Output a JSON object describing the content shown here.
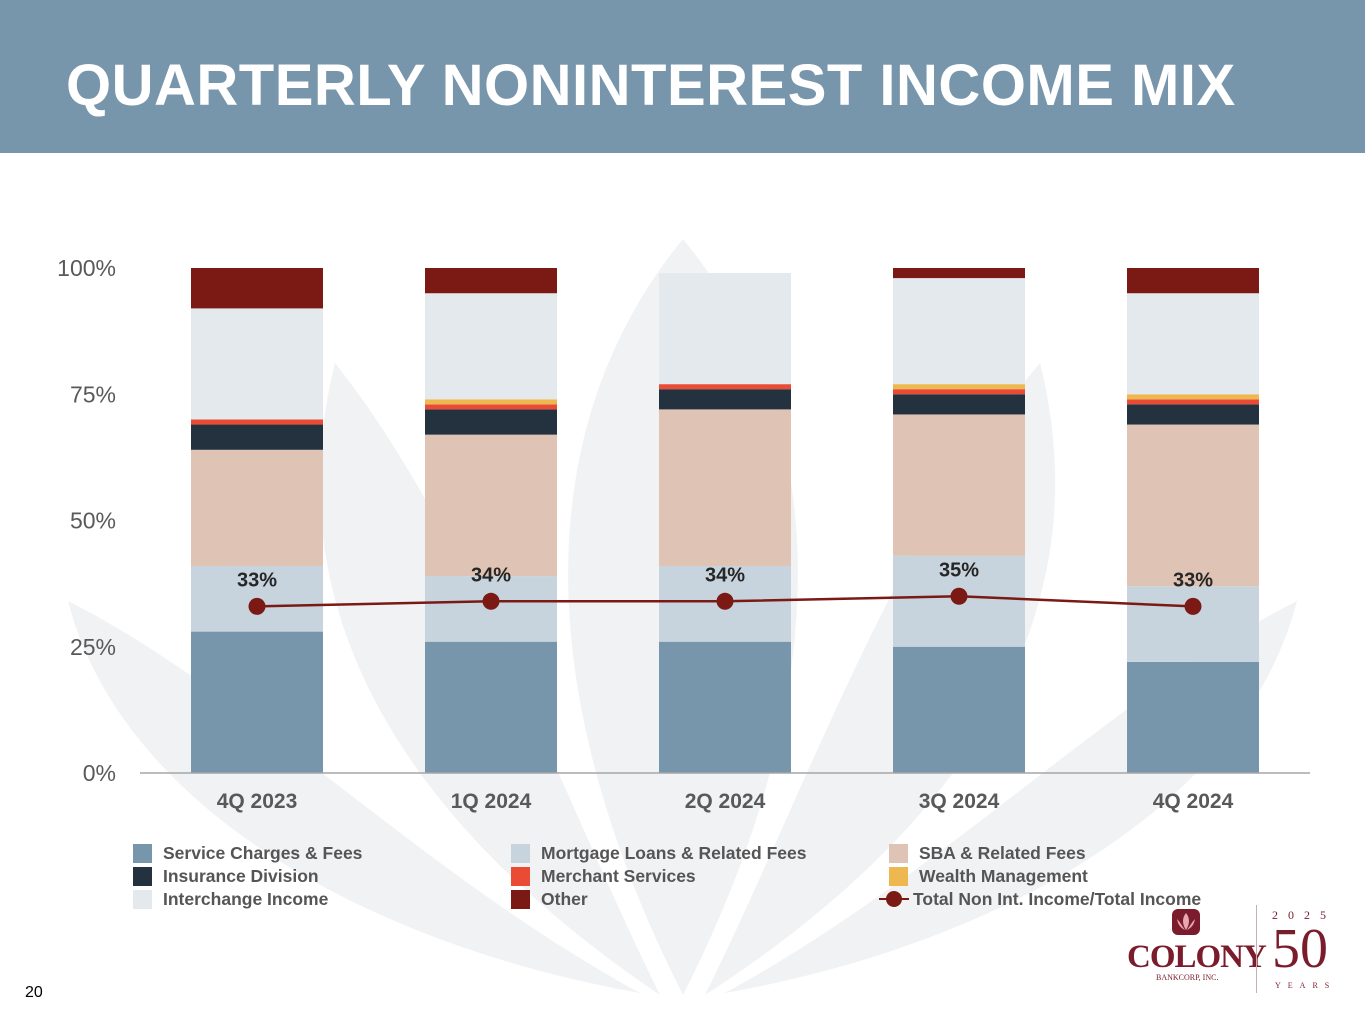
{
  "slide": {
    "title": "QUARTERLY NONINTEREST INCOME MIX",
    "page_number": "20"
  },
  "logo": {
    "name": "COLONY",
    "subtitle": "BANKCORP, INC.",
    "year": "2025",
    "anniversary": "50",
    "years_label": "YEARS"
  },
  "colors": {
    "header": "#7795ab",
    "watermark": "#f1f2f4",
    "line": "#7b1a14",
    "brand": "#7b1c2c"
  },
  "chart_data": {
    "type": "bar",
    "stacked": true,
    "categories": [
      "4Q 2023",
      "1Q 2024",
      "2Q 2024",
      "3Q 2024",
      "4Q 2024"
    ],
    "ylim": [
      0,
      100
    ],
    "yticks": [
      0,
      25,
      50,
      75,
      100
    ],
    "ytick_labels": [
      "0%",
      "25%",
      "50%",
      "75%",
      "100%"
    ],
    "legend_position": "bottom",
    "grid": false,
    "series": [
      {
        "name": "Service Charges & Fees",
        "color": "#7795ab",
        "values": [
          28,
          26,
          26,
          25,
          22
        ]
      },
      {
        "name": "Mortgage Loans &  Related Fees",
        "color": "#c7d4de",
        "values": [
          13,
          13,
          15,
          18,
          15
        ]
      },
      {
        "name": "SBA & Related Fees",
        "color": "#dfc3b4",
        "values": [
          23,
          28,
          31,
          28,
          32
        ]
      },
      {
        "name": "Insurance Division",
        "color": "#243240",
        "values": [
          5,
          5,
          4,
          4,
          4
        ]
      },
      {
        "name": "Merchant Services",
        "color": "#e94b35",
        "values": [
          1,
          1,
          1,
          1,
          1
        ]
      },
      {
        "name": "Wealth Management",
        "color": "#ecb84f",
        "values": [
          0,
          1,
          0,
          1,
          1
        ]
      },
      {
        "name": "Interchange Income",
        "color": "#e3e9ed",
        "values": [
          22,
          21,
          22,
          21,
          20
        ]
      },
      {
        "name": "Other",
        "color": "#7b1a14",
        "values": [
          8,
          5,
          0,
          2,
          5
        ]
      }
    ],
    "line_series": {
      "name": "Total Non Int. Income/Total Income",
      "color": "#7b1a14",
      "values": [
        33,
        34,
        34,
        35,
        33
      ],
      "labels": [
        "33%",
        "34%",
        "34%",
        "35%",
        "33%"
      ]
    },
    "legend_order": [
      "Service Charges & Fees",
      "Mortgage Loans &  Related Fees",
      "SBA & Related Fees",
      "Insurance Division",
      "Merchant Services",
      "Wealth Management",
      "Interchange Income",
      "Other",
      "Total Non Int. Income/Total Income"
    ]
  }
}
